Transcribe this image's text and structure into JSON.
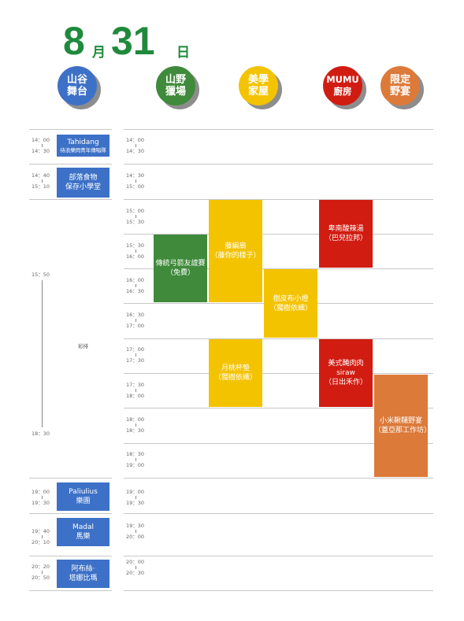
{
  "header": {
    "month_num": "8",
    "month_char": "月",
    "day_num": "31",
    "day_char": "日"
  },
  "venues": [
    {
      "name": "山谷\n舞台",
      "color": "#3d71c7"
    },
    {
      "name": "山野\n獵場",
      "color": "#3f8a3b"
    },
    {
      "name": "美學\n家屋",
      "color": "#f4c300"
    },
    {
      "name": "MUMU\n廚房",
      "color": "#d11c12"
    },
    {
      "name": "限定\n野宴",
      "color": "#dc7a3a"
    }
  ],
  "left_schedule": {
    "rows": [
      {
        "start": "14：00",
        "end": "14：30"
      },
      {
        "start": "14：40",
        "end": "15：10"
      },
      {
        "start": "15：50",
        "end": "18：30"
      },
      {
        "start": "19：00",
        "end": "19：30"
      },
      {
        "start": "19：40",
        "end": "20：10"
      },
      {
        "start": "20：20",
        "end": "20：50"
      }
    ],
    "rehearsal_label": "彩排",
    "events": [
      {
        "title": "Tahidang",
        "subtitle": "待浪樂閃青年傳唱隊"
      },
      {
        "title": "部落食物",
        "subtitle": "保存小學堂"
      },
      {
        "title": "Paliulius",
        "subtitle": "樂團"
      },
      {
        "title": "Madal",
        "subtitle": "馬樂"
      },
      {
        "title": "阿布絲‧",
        "subtitle": "塔娜比瑪"
      }
    ]
  },
  "time_slots": [
    {
      "start": "14：00",
      "end": "14：30"
    },
    {
      "start": "14：30",
      "end": "15：00"
    },
    {
      "start": "15：00",
      "end": "15：30"
    },
    {
      "start": "15：30",
      "end": "16：00"
    },
    {
      "start": "16：00",
      "end": "16：30"
    },
    {
      "start": "16：30",
      "end": "17：00"
    },
    {
      "start": "17：00",
      "end": "17：30"
    },
    {
      "start": "17：30",
      "end": "18：00"
    },
    {
      "start": "18：00",
      "end": "18：30"
    },
    {
      "start": "18：30",
      "end": "19：00"
    },
    {
      "start": "19：00",
      "end": "19：30"
    },
    {
      "start": "19：30",
      "end": "20：00"
    },
    {
      "start": "20：00",
      "end": "20：30"
    }
  ],
  "events": [
    {
      "venue": "山野獵場",
      "text": "傳統弓箭友誼賽\n（免費）",
      "color": "#3f8a3b"
    },
    {
      "venue": "美學家屋",
      "text": "藤編扇\n（藤你的樣子）",
      "color": "#f4c300"
    },
    {
      "venue": "美學家屋",
      "text": "樹皮布小燈\n（獨樹依織）",
      "color": "#f4c300"
    },
    {
      "venue": "美學家屋",
      "text": "月桃杯墊\n（獨樹依織）",
      "color": "#f4c300"
    },
    {
      "venue": "MUMU廚房",
      "text": "卑南酸辣湯\n（巴兒拉邦）",
      "color": "#d11c12"
    },
    {
      "venue": "MUMU廚房",
      "text": "美式醃肉肉\nsiraw\n（日出禾作）",
      "color": "#d11c12"
    },
    {
      "venue": "限定野宴",
      "text": "小米鞦韆野宴\n（蓋亞那工作坊）",
      "color": "#dc7a3a"
    }
  ]
}
